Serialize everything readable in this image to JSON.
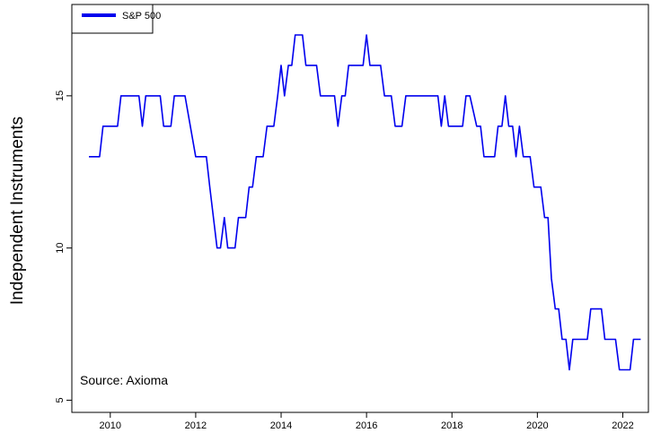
{
  "chart_data": {
    "type": "line",
    "title": "",
    "xlabel": "",
    "ylabel": "Independent Instruments",
    "xlim": [
      2009.1,
      2022.6
    ],
    "ylim": [
      4.6,
      18.0
    ],
    "x_ticks": [
      2010,
      2012,
      2014,
      2016,
      2018,
      2020,
      2022
    ],
    "y_ticks": [
      5,
      10,
      15
    ],
    "grid": false,
    "legend_position": "top-left",
    "annotation": "Source:  Axioma",
    "series": [
      {
        "name": "S&P 500",
        "color": "#0000ee",
        "points": [
          [
            2009.5,
            13
          ],
          [
            2009.75,
            13
          ],
          [
            2009.83,
            14
          ],
          [
            2010.17,
            14
          ],
          [
            2010.25,
            15
          ],
          [
            2010.67,
            15
          ],
          [
            2010.75,
            14
          ],
          [
            2010.83,
            15
          ],
          [
            2011.17,
            15
          ],
          [
            2011.25,
            14
          ],
          [
            2011.42,
            14
          ],
          [
            2011.5,
            15
          ],
          [
            2011.75,
            15
          ],
          [
            2012.0,
            13
          ],
          [
            2012.25,
            13
          ],
          [
            2012.33,
            12
          ],
          [
            2012.5,
            10
          ],
          [
            2012.58,
            10
          ],
          [
            2012.67,
            11
          ],
          [
            2012.75,
            10
          ],
          [
            2012.92,
            10
          ],
          [
            2013.0,
            11
          ],
          [
            2013.17,
            11
          ],
          [
            2013.25,
            12
          ],
          [
            2013.33,
            12
          ],
          [
            2013.42,
            13
          ],
          [
            2013.58,
            13
          ],
          [
            2013.67,
            14
          ],
          [
            2013.83,
            14
          ],
          [
            2013.92,
            15
          ],
          [
            2014.0,
            16
          ],
          [
            2014.08,
            15
          ],
          [
            2014.17,
            16
          ],
          [
            2014.25,
            16
          ],
          [
            2014.33,
            17
          ],
          [
            2014.5,
            17
          ],
          [
            2014.58,
            16
          ],
          [
            2014.83,
            16
          ],
          [
            2014.92,
            15
          ],
          [
            2015.25,
            15
          ],
          [
            2015.33,
            14
          ],
          [
            2015.42,
            15
          ],
          [
            2015.5,
            15
          ],
          [
            2015.58,
            16
          ],
          [
            2015.92,
            16
          ],
          [
            2016.0,
            17
          ],
          [
            2016.08,
            16
          ],
          [
            2016.33,
            16
          ],
          [
            2016.42,
            15
          ],
          [
            2016.58,
            15
          ],
          [
            2016.67,
            14
          ],
          [
            2016.83,
            14
          ],
          [
            2016.92,
            15
          ],
          [
            2017.67,
            15
          ],
          [
            2017.75,
            14
          ],
          [
            2017.83,
            15
          ],
          [
            2017.92,
            14
          ],
          [
            2018.25,
            14
          ],
          [
            2018.33,
            15
          ],
          [
            2018.42,
            15
          ],
          [
            2018.58,
            14
          ],
          [
            2018.67,
            14
          ],
          [
            2018.75,
            13
          ],
          [
            2019.0,
            13
          ],
          [
            2019.08,
            14
          ],
          [
            2019.17,
            14
          ],
          [
            2019.25,
            15
          ],
          [
            2019.33,
            14
          ],
          [
            2019.42,
            14
          ],
          [
            2019.5,
            13
          ],
          [
            2019.58,
            14
          ],
          [
            2019.67,
            13
          ],
          [
            2019.83,
            13
          ],
          [
            2019.92,
            12
          ],
          [
            2020.08,
            12
          ],
          [
            2020.17,
            11
          ],
          [
            2020.25,
            11
          ],
          [
            2020.33,
            9
          ],
          [
            2020.42,
            8
          ],
          [
            2020.5,
            8
          ],
          [
            2020.58,
            7
          ],
          [
            2020.67,
            7
          ],
          [
            2020.75,
            6
          ],
          [
            2020.83,
            7
          ],
          [
            2021.17,
            7
          ],
          [
            2021.25,
            8
          ],
          [
            2021.5,
            8
          ],
          [
            2021.58,
            7
          ],
          [
            2021.83,
            7
          ],
          [
            2021.92,
            6
          ],
          [
            2022.17,
            6
          ],
          [
            2022.25,
            7
          ],
          [
            2022.42,
            7
          ]
        ]
      }
    ]
  }
}
